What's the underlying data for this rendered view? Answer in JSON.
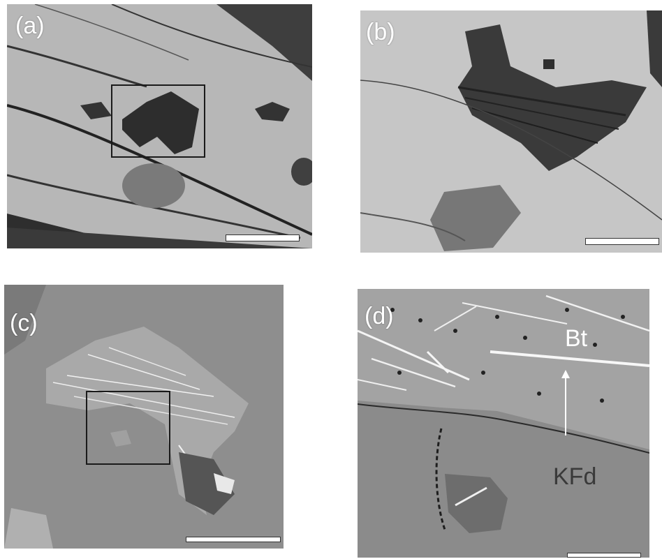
{
  "panels": {
    "a": {
      "label": "(a)"
    },
    "b": {
      "label": "(b)"
    },
    "c": {
      "label": "(c)"
    },
    "d": {
      "label": "(d)"
    }
  },
  "annotations": {
    "bt": "Bt",
    "kfd": "KFd"
  }
}
